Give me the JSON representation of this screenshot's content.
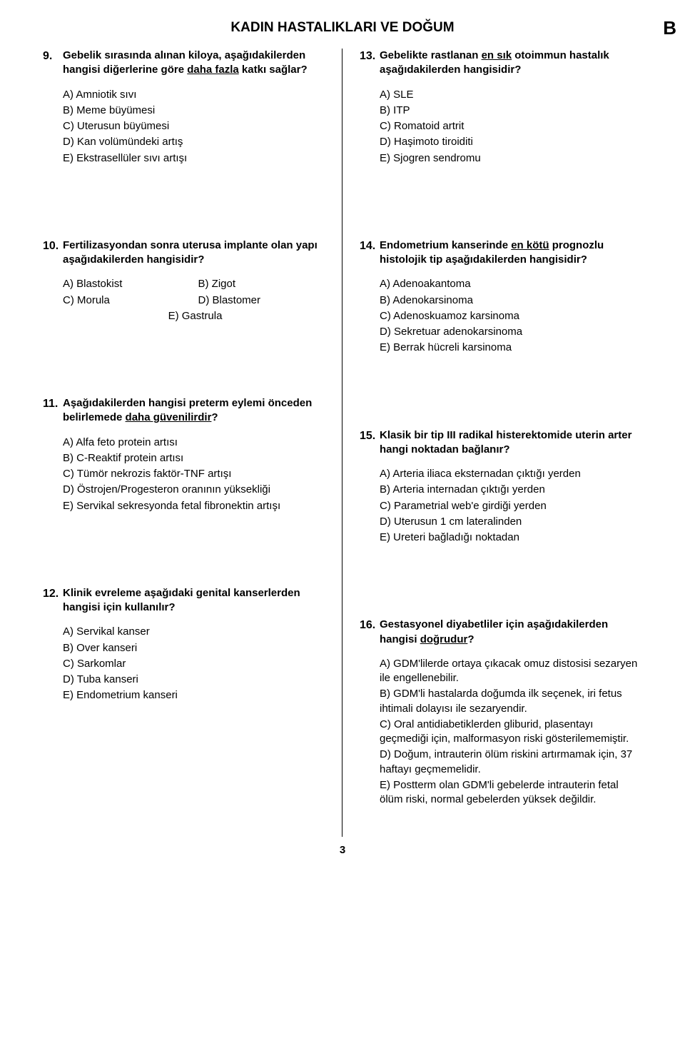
{
  "page": {
    "title": "KADIN HASTALIKLARI VE DOĞUM",
    "section_letter": "B",
    "page_number": "3",
    "text_color": "#000000",
    "bg_color": "#ffffff",
    "divider_color": "#000000",
    "font_size_body": 15,
    "font_size_num": 16,
    "font_size_title": 19,
    "font_size_section": 26
  },
  "left": [
    {
      "num": "9.",
      "stem_parts": [
        "Gebelik sırasında alınan kiloya, aşağıdakilerden hangisi diğerlerine göre ",
        "daha fazla",
        " katkı sağlar?"
      ],
      "options": [
        "A) Amniotik sıvı",
        "B) Meme büyümesi",
        "C) Uterusun büyümesi",
        "D) Kan volümündeki artış",
        "E) Ekstrasellüler sıvı artışı"
      ]
    },
    {
      "num": "10.",
      "stem_parts": [
        "Fertilizasyondan sonra uterusa implante olan yapı aşağıdakilerden hangisidir?"
      ],
      "grid_options": [
        "A) Blastokist",
        "B) Zigot",
        "C) Morula",
        "D) Blastomer"
      ],
      "grid_last": "E) Gastrula"
    },
    {
      "num": "11.",
      "stem_parts": [
        "Aşağıdakilerden hangisi preterm eylemi önceden belirlemede ",
        "daha güvenilirdir",
        "?"
      ],
      "options": [
        "A) Alfa feto protein artısı",
        "B) C-Reaktif protein artısı",
        "C) Tümör nekrozis faktör-TNF artışı",
        "D) Östrojen/Progesteron oranının yüksekliği",
        "E) Servikal sekresyonda fetal fibronektin artışı"
      ]
    },
    {
      "num": "12.",
      "stem_parts": [
        "Klinik evreleme aşağıdaki genital kanserlerden hangisi için kullanılır?"
      ],
      "options": [
        "A) Servikal kanser",
        "B) Over kanseri",
        "C) Sarkomlar",
        "D) Tuba kanseri",
        "E) Endometrium kanseri"
      ]
    }
  ],
  "right": [
    {
      "num": "13.",
      "stem_parts": [
        "Gebelikte rastlanan ",
        "en sık",
        " otoimmun hastalık aşağıdakilerden hangisidir?"
      ],
      "options": [
        "A) SLE",
        "B) ITP",
        "C) Romatoid artrit",
        "D) Haşimoto tiroiditi",
        "E) Sjogren sendromu"
      ]
    },
    {
      "num": "14.",
      "stem_parts": [
        "Endometrium kanserinde ",
        "en kötü",
        " prognozlu histolojik tip aşağıdakilerden hangisidir?"
      ],
      "options": [
        "A) Adenoakantoma",
        "B) Adenokarsinoma",
        "C) Adenoskuamoz karsinoma",
        "D) Sekretuar adenokarsinoma",
        "E) Berrak hücreli karsinoma"
      ]
    },
    {
      "num": "15.",
      "stem_parts": [
        "Klasik bir tip III radikal histerektomide uterin arter hangi noktadan bağlanır?"
      ],
      "options": [
        "A) Arteria iliaca eksternadan çıktığı yerden",
        "B) Arteria internadan çıktığı yerden",
        "C) Parametrial web'e girdiği yerden",
        "D) Uterusun 1 cm lateralinden",
        "E) Ureteri bağladığı noktadan"
      ]
    },
    {
      "num": "16.",
      "stem_parts": [
        "Gestasyonel diyabetliler için aşağıdakilerden hangisi ",
        "doğrudur",
        "?"
      ],
      "options": [
        "A) GDM'lilerde ortaya çıkacak omuz distosisi sezaryen ile engellenebilir.",
        "B) GDM'li hastalarda doğumda ilk seçenek, iri fetus ihtimali dolayısı ile sezaryendir.",
        "C) Oral antidiabetiklerden gliburid, plasentayı geçmediği için, malformasyon riski gösterilememiştir.",
        "D) Doğum, intrauterin ölüm riskini artırmamak için, 37 haftayı geçmemelidir.",
        "E) Postterm olan GDM'li gebelerde intrauterin fetal ölüm riski, normal gebelerden yüksek değildir."
      ]
    }
  ]
}
